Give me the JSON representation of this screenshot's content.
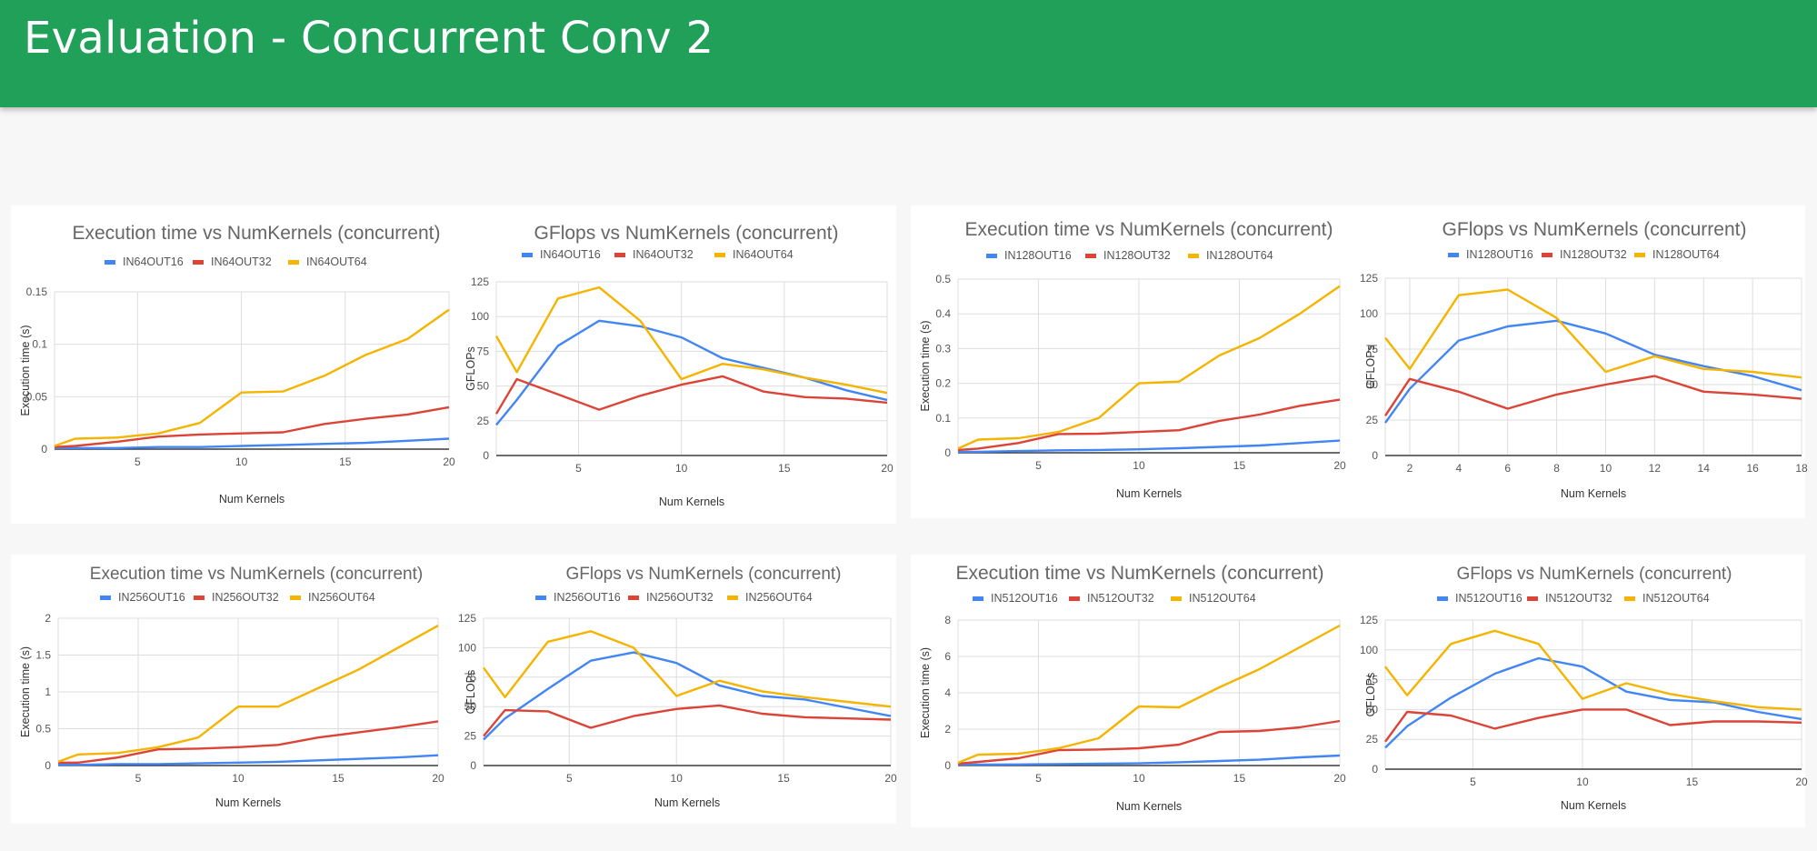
{
  "header": {
    "title": "Evaluation - Concurrent Conv 2"
  },
  "colors": {
    "header_bg": "#21a05a",
    "blue": "#4285f4",
    "red": "#db4437",
    "yellow": "#f4b400"
  },
  "chart_data": [
    {
      "type": "line",
      "title": "Execution time vs NumKernels (concurrent)",
      "xlabel": "Num Kernels",
      "ylabel": "Execution time (s)",
      "xlim": [
        1,
        20
      ],
      "ylim": [
        0,
        0.15
      ],
      "xticks": [
        5,
        10,
        15,
        20
      ],
      "yticks": [
        0,
        0.05,
        0.1,
        0.15
      ],
      "ytick_labels": [
        "0",
        "0.05",
        "0.1",
        "0.15"
      ],
      "grid": true,
      "legend": "top",
      "x": [
        1,
        2,
        4,
        6,
        8,
        10,
        12,
        14,
        16,
        18,
        20
      ],
      "series": [
        {
          "name": "IN64OUT16",
          "values": [
            0.001,
            0.001,
            0.001,
            0.002,
            0.002,
            0.003,
            0.004,
            0.005,
            0.006,
            0.008,
            0.01
          ]
        },
        {
          "name": "IN64OUT32",
          "values": [
            0.002,
            0.003,
            0.007,
            0.012,
            0.014,
            0.015,
            0.016,
            0.024,
            0.029,
            0.033,
            0.04
          ]
        },
        {
          "name": "IN64OUT64",
          "values": [
            0.003,
            0.01,
            0.011,
            0.015,
            0.025,
            0.054,
            0.055,
            0.07,
            0.09,
            0.105,
            0.133
          ]
        }
      ]
    },
    {
      "type": "line",
      "title": "GFlops vs NumKernels (concurrent)",
      "xlabel": "Num Kernels",
      "ylabel": "GFLOPs",
      "xlim": [
        1,
        20
      ],
      "ylim": [
        0,
        125
      ],
      "xticks": [
        5,
        10,
        15,
        20
      ],
      "yticks": [
        0,
        25,
        50,
        75,
        100,
        125
      ],
      "ytick_labels": [
        "0",
        "25",
        "50",
        "75",
        "100",
        "125"
      ],
      "grid": true,
      "legend": "top",
      "x": [
        1,
        2,
        4,
        6,
        8,
        10,
        12,
        14,
        16,
        18,
        20
      ],
      "series": [
        {
          "name": "IN64OUT16",
          "values": [
            22,
            40,
            79,
            97,
            93,
            85,
            70,
            63,
            56,
            47,
            40
          ]
        },
        {
          "name": "IN64OUT32",
          "values": [
            30,
            55,
            44,
            33,
            43,
            51,
            57,
            46,
            42,
            41,
            38
          ]
        },
        {
          "name": "IN64OUT64",
          "values": [
            86,
            60,
            113,
            121,
            97,
            55,
            66,
            62,
            56,
            51,
            45
          ]
        }
      ]
    },
    {
      "type": "line",
      "title": "Execution time vs NumKernels (concurrent)",
      "xlabel": "Num Kernels",
      "ylabel": "Execution time (s)",
      "xlim": [
        1,
        20
      ],
      "ylim": [
        0,
        0.5
      ],
      "xticks": [
        5,
        10,
        15,
        20
      ],
      "yticks": [
        0,
        0.1,
        0.2,
        0.3,
        0.4,
        0.5
      ],
      "ytick_labels": [
        "0",
        "0.1",
        "0.2",
        "0.3",
        "0.4",
        "0.5"
      ],
      "grid": true,
      "legend": "top",
      "x": [
        1,
        2,
        4,
        6,
        8,
        10,
        12,
        14,
        16,
        18,
        20
      ],
      "series": [
        {
          "name": "IN128OUT16",
          "values": [
            0.003,
            0.003,
            0.005,
            0.007,
            0.008,
            0.01,
            0.013,
            0.017,
            0.021,
            0.028,
            0.035
          ]
        },
        {
          "name": "IN128OUT32",
          "values": [
            0.008,
            0.012,
            0.028,
            0.054,
            0.055,
            0.06,
            0.065,
            0.092,
            0.11,
            0.135,
            0.153
          ]
        },
        {
          "name": "IN128OUT64",
          "values": [
            0.012,
            0.038,
            0.042,
            0.06,
            0.1,
            0.2,
            0.205,
            0.28,
            0.33,
            0.4,
            0.48
          ]
        }
      ]
    },
    {
      "type": "line",
      "title": "GFlops vs NumKernels (concurrent)",
      "xlabel": "Num Kernels",
      "ylabel": "GFLOPs",
      "xlim": [
        1,
        18
      ],
      "ylim": [
        0,
        125
      ],
      "xticks": [
        2,
        4,
        6,
        8,
        10,
        12,
        14,
        16,
        18
      ],
      "yticks": [
        0,
        25,
        50,
        75,
        100,
        125
      ],
      "ytick_labels": [
        "0",
        "25",
        "50",
        "75",
        "100",
        "125"
      ],
      "grid": true,
      "legend": "top",
      "x": [
        1,
        2,
        4,
        6,
        8,
        10,
        12,
        14,
        16,
        18
      ],
      "series": [
        {
          "name": "IN128OUT16",
          "values": [
            23,
            47,
            81,
            91,
            95,
            86,
            71,
            63,
            56,
            46
          ]
        },
        {
          "name": "IN128OUT32",
          "values": [
            28,
            54,
            45,
            33,
            43,
            50,
            56,
            45,
            43,
            40
          ]
        },
        {
          "name": "IN128OUT64",
          "values": [
            83,
            61,
            113,
            117,
            97,
            59,
            70,
            61,
            59,
            55
          ]
        }
      ]
    },
    {
      "type": "line",
      "title": "Execution time vs NumKernels (concurrent)",
      "xlabel": "Num Kernels",
      "ylabel": "Execution time (s)",
      "xlim": [
        1,
        20
      ],
      "ylim": [
        0,
        2
      ],
      "xticks": [
        5,
        10,
        15,
        20
      ],
      "yticks": [
        0,
        0.5,
        1,
        1.5,
        2
      ],
      "ytick_labels": [
        "0",
        "0.5",
        "1",
        "1.5",
        "2"
      ],
      "grid": true,
      "legend": "top",
      "x": [
        1,
        2,
        4,
        6,
        8,
        10,
        12,
        14,
        16,
        18,
        20
      ],
      "series": [
        {
          "name": "IN256OUT16",
          "values": [
            0.01,
            0.01,
            0.02,
            0.02,
            0.03,
            0.04,
            0.05,
            0.07,
            0.09,
            0.11,
            0.14
          ]
        },
        {
          "name": "IN256OUT32",
          "values": [
            0.04,
            0.04,
            0.11,
            0.22,
            0.23,
            0.25,
            0.28,
            0.38,
            0.45,
            0.52,
            0.6
          ]
        },
        {
          "name": "IN256OUT64",
          "values": [
            0.05,
            0.15,
            0.17,
            0.25,
            0.38,
            0.8,
            0.8,
            1.05,
            1.3,
            1.6,
            1.9
          ]
        }
      ]
    },
    {
      "type": "line",
      "title": "GFlops vs NumKernels (concurrent)",
      "xlabel": "Num Kernels",
      "ylabel": "GFLOPs",
      "xlim": [
        1,
        20
      ],
      "ylim": [
        0,
        125
      ],
      "xticks": [
        5,
        10,
        15,
        20
      ],
      "yticks": [
        0,
        25,
        50,
        75,
        100,
        125
      ],
      "ytick_labels": [
        "0",
        "25",
        "50",
        "75",
        "100",
        "125"
      ],
      "grid": true,
      "legend": "top",
      "x": [
        1,
        2,
        4,
        6,
        8,
        10,
        12,
        14,
        16,
        18,
        20
      ],
      "series": [
        {
          "name": "IN256OUT16",
          "values": [
            22,
            40,
            65,
            89,
            96,
            87,
            68,
            59,
            56,
            49,
            42
          ]
        },
        {
          "name": "IN256OUT32",
          "values": [
            25,
            47,
            46,
            32,
            42,
            48,
            51,
            44,
            41,
            40,
            39
          ]
        },
        {
          "name": "IN256OUT64",
          "values": [
            83,
            58,
            105,
            114,
            100,
            59,
            72,
            63,
            58,
            54,
            50
          ]
        }
      ]
    },
    {
      "type": "line",
      "title": "Execution time vs NumKernels (concurrent)",
      "xlabel": "Num Kernels",
      "ylabel": "Execution time (s)",
      "xlim": [
        1,
        20
      ],
      "ylim": [
        0,
        8
      ],
      "xticks": [
        5,
        10,
        15,
        20
      ],
      "yticks": [
        0,
        2,
        4,
        6,
        8
      ],
      "ytick_labels": [
        "0",
        "2",
        "4",
        "6",
        "8"
      ],
      "grid": true,
      "legend": "top",
      "x": [
        1,
        2,
        4,
        6,
        8,
        10,
        12,
        14,
        16,
        18,
        20
      ],
      "series": [
        {
          "name": "IN512OUT16",
          "values": [
            0.05,
            0.05,
            0.06,
            0.08,
            0.1,
            0.12,
            0.18,
            0.25,
            0.32,
            0.45,
            0.55
          ]
        },
        {
          "name": "IN512OUT32",
          "values": [
            0.1,
            0.2,
            0.4,
            0.85,
            0.88,
            0.95,
            1.15,
            1.85,
            1.9,
            2.1,
            2.45
          ]
        },
        {
          "name": "IN512OUT64",
          "values": [
            0.15,
            0.6,
            0.65,
            0.95,
            1.5,
            3.25,
            3.2,
            4.3,
            5.3,
            6.5,
            7.7
          ]
        }
      ]
    },
    {
      "type": "line",
      "title": "GFlops vs NumKernels (concurrent)",
      "xlabel": "Num Kernels",
      "ylabel": "GFLOPs",
      "xlim": [
        1,
        20
      ],
      "ylim": [
        0,
        125
      ],
      "xticks": [
        5,
        10,
        15,
        20
      ],
      "yticks": [
        0,
        25,
        50,
        75,
        100,
        125
      ],
      "ytick_labels": [
        "0",
        "25",
        "50",
        "75",
        "100",
        "125"
      ],
      "grid": true,
      "legend": "top",
      "x": [
        1,
        2,
        4,
        6,
        8,
        10,
        12,
        14,
        16,
        18,
        20
      ],
      "series": [
        {
          "name": "IN512OUT16",
          "values": [
            18,
            36,
            60,
            80,
            93,
            86,
            65,
            58,
            56,
            48,
            42
          ]
        },
        {
          "name": "IN512OUT32",
          "values": [
            23,
            48,
            45,
            34,
            43,
            50,
            50,
            37,
            40,
            40,
            39
          ]
        },
        {
          "name": "IN512OUT64",
          "values": [
            86,
            62,
            105,
            116,
            105,
            59,
            72,
            63,
            57,
            52,
            50
          ]
        }
      ]
    }
  ]
}
